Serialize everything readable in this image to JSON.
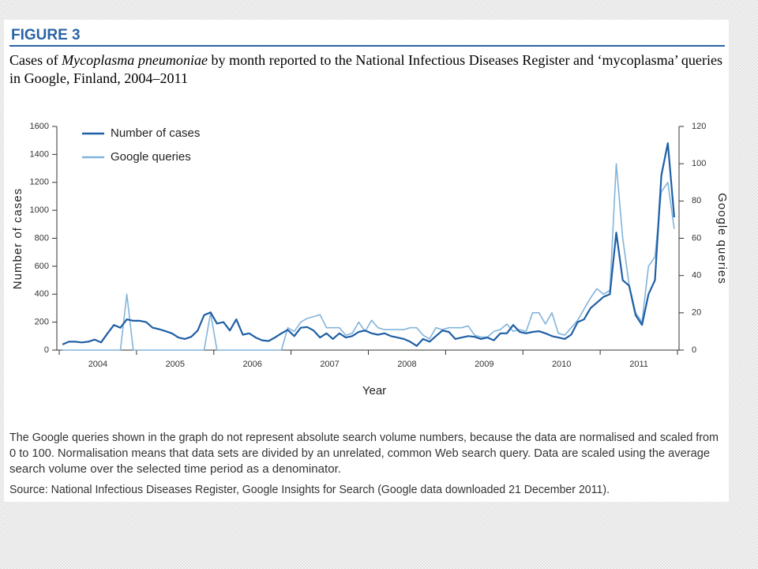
{
  "figure_label": "FIGURE 3",
  "caption": {
    "line1": [
      "Cases of ",
      "Mycoplasma pneumoniae",
      " by month reported to the National Infectious Diseases Register and ‘mycoplasma’ queries"
    ],
    "line2": "in Google, Finland, 2004–2011"
  },
  "notes": [
    "The Google queries shown in the graph do not represent absolute search volume numbers, because the data are normalised and scaled from",
    "0 to 100. Normalisation means that data sets are divided by an unrelated, common Web search query. Data are scaled using the average",
    "search volume over the selected time period as a denominator."
  ],
  "source": "Source: National Infectious Diseases Register, Google Insights for Search (Google data downloaded 21 December 2011).",
  "chart_data": {
    "type": "line",
    "x_label": "Year",
    "y_label": "Number of cases",
    "y2_label": "Google queries",
    "categories": [
      null,
      null,
      null,
      null,
      null,
      null,
      "2004",
      null,
      null,
      null,
      null,
      null,
      null,
      null,
      null,
      null,
      null,
      null,
      "2005",
      null,
      null,
      null,
      null,
      null,
      null,
      null,
      null,
      null,
      null,
      null,
      "2006",
      null,
      null,
      null,
      null,
      null,
      null,
      null,
      null,
      null,
      null,
      null,
      "2007",
      null,
      null,
      null,
      null,
      null,
      null,
      null,
      null,
      null,
      null,
      null,
      "2008",
      null,
      null,
      null,
      null,
      null,
      null,
      null,
      null,
      null,
      null,
      null,
      "2009",
      null,
      null,
      null,
      null,
      null,
      null,
      null,
      null,
      null,
      null,
      null,
      "2010",
      null,
      null,
      null,
      null,
      null,
      null,
      null,
      null,
      null,
      null,
      null,
      "2011",
      null,
      null,
      null,
      null,
      null
    ],
    "series": [
      {
        "name": "Number of cases",
        "color": "#1f5fa5",
        "axis": "y",
        "values": [
          40,
          60,
          60,
          55,
          60,
          75,
          55,
          120,
          180,
          160,
          220,
          210,
          210,
          200,
          160,
          150,
          135,
          120,
          90,
          80,
          95,
          140,
          250,
          270,
          190,
          200,
          140,
          220,
          110,
          120,
          90,
          70,
          65,
          90,
          120,
          145,
          100,
          160,
          165,
          140,
          90,
          120,
          80,
          120,
          90,
          100,
          130,
          140,
          120,
          110,
          120,
          100,
          90,
          80,
          60,
          30,
          80,
          60,
          100,
          140,
          130,
          80,
          90,
          100,
          95,
          80,
          90,
          70,
          120,
          120,
          180,
          130,
          120,
          130,
          135,
          120,
          100,
          90,
          80,
          110,
          200,
          220,
          300,
          340,
          380,
          400,
          840,
          500,
          460,
          250,
          180,
          400,
          500,
          1250,
          1480,
          950
        ]
      },
      {
        "name": "Google queries",
        "color": "#82b4db",
        "axis": "y2",
        "values": [
          0,
          0,
          0,
          0,
          0,
          0,
          0,
          0,
          0,
          0,
          30,
          0,
          0,
          0,
          0,
          0,
          0,
          0,
          0,
          0,
          0,
          0,
          0,
          20,
          0,
          0,
          0,
          0,
          0,
          0,
          0,
          0,
          0,
          0,
          0,
          12,
          10,
          15,
          17,
          18,
          19,
          12,
          12,
          12,
          8,
          9,
          15,
          10,
          16,
          12,
          11,
          11,
          11,
          11,
          12,
          12,
          8,
          6,
          12,
          11,
          12,
          12,
          12,
          13,
          8,
          7,
          7,
          10,
          11,
          14,
          10,
          11,
          10,
          20,
          20,
          14,
          20,
          9,
          8,
          12,
          16,
          22,
          28,
          33,
          30,
          32,
          100,
          60,
          35,
          20,
          15,
          45,
          50,
          85,
          90,
          65
        ]
      }
    ],
    "ylim": [
      0,
      1600
    ],
    "yticks": [
      0,
      200,
      400,
      600,
      800,
      1000,
      1200,
      1400,
      1600
    ],
    "y2lim": [
      0,
      120
    ],
    "y2ticks": [
      0,
      20,
      40,
      60,
      80,
      100,
      120
    ],
    "legend": "upper left",
    "grid": false
  }
}
